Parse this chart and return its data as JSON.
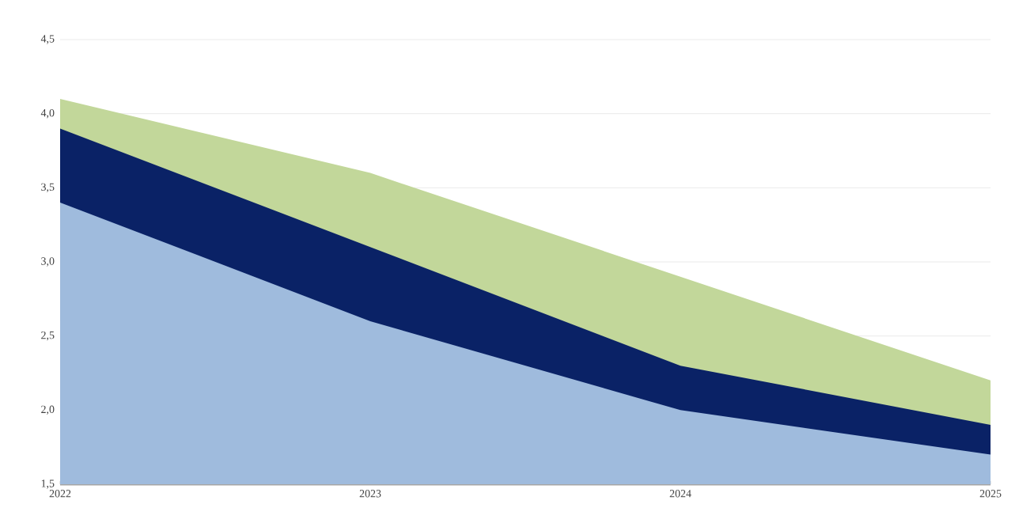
{
  "chart_data": {
    "type": "area",
    "categories": [
      "2022",
      "2023",
      "2024",
      "2025"
    ],
    "series": [
      {
        "color": "#c2d79a",
        "values": [
          4.1,
          3.6,
          2.9,
          2.2
        ]
      },
      {
        "color": "#0a2266",
        "values": [
          3.9,
          3.1,
          2.3,
          1.9
        ]
      },
      {
        "color": "#9fbbdd",
        "values": [
          3.4,
          2.6,
          2.0,
          1.7
        ]
      }
    ],
    "ylim": [
      1.5,
      4.5
    ],
    "yticks": [
      {
        "value": 1.5,
        "label": "1,5"
      },
      {
        "value": 2.0,
        "label": "2,0"
      },
      {
        "value": 2.5,
        "label": "2,5"
      },
      {
        "value": 3.0,
        "label": "3,0"
      },
      {
        "value": 3.5,
        "label": "3,5"
      },
      {
        "value": 4.0,
        "label": "4,0"
      },
      {
        "value": 4.5,
        "label": "4,5"
      }
    ],
    "grid": "y"
  }
}
